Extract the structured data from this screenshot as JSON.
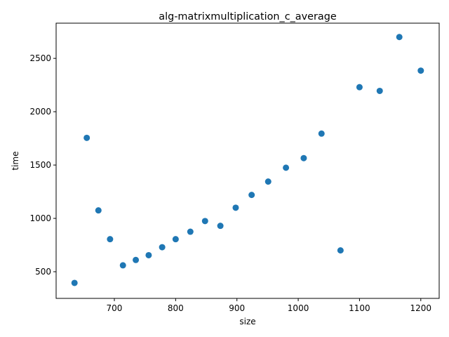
{
  "chart_data": {
    "type": "scatter",
    "title": "alg-matrixmultiplication_c_average",
    "xlabel": "size",
    "ylabel": "time",
    "xlim": [
      605,
      1230
    ],
    "ylim": [
      250,
      2830
    ],
    "xticks": [
      700,
      800,
      900,
      1000,
      1100,
      1200
    ],
    "yticks": [
      500,
      1000,
      1500,
      2000,
      2500
    ],
    "grid": false,
    "marker_color": "#1f77b4",
    "series": [
      {
        "x": [
          635,
          655,
          674,
          693,
          714,
          735,
          756,
          778,
          800,
          824,
          848,
          873,
          898,
          924,
          951,
          980,
          1009,
          1038,
          1069,
          1100,
          1133,
          1165,
          1200
        ],
        "y": [
          395,
          1755,
          1075,
          805,
          560,
          610,
          655,
          730,
          805,
          875,
          975,
          930,
          1100,
          1220,
          1345,
          1475,
          1565,
          1795,
          700,
          2230,
          2195,
          2700,
          2385
        ]
      }
    ]
  }
}
